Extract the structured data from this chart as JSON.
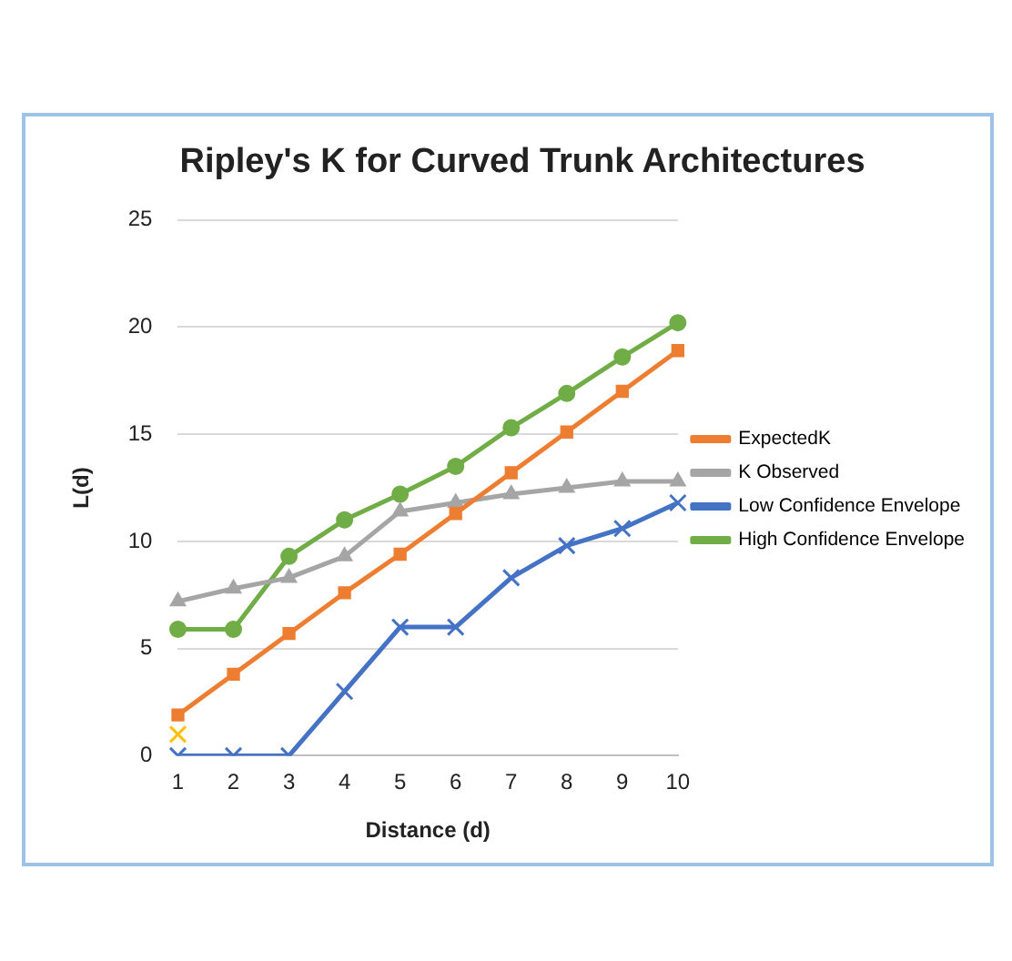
{
  "chart_data": {
    "type": "line",
    "title": "Ripley's K for Curved Trunk Architectures",
    "xlabel": "Distance (d)",
    "ylabel": "L(d)",
    "categories": [
      "1",
      "2",
      "3",
      "4",
      "5",
      "6",
      "7",
      "8",
      "9",
      "10"
    ],
    "series": [
      {
        "name": "ExpectedK",
        "color": "#ed7d31",
        "marker": "square",
        "values": [
          1.9,
          3.8,
          5.7,
          7.6,
          9.4,
          11.3,
          13.2,
          15.1,
          17,
          18.9
        ]
      },
      {
        "name": "K Observed",
        "color": "#a5a5a5",
        "marker": "triangle",
        "values": [
          7.2,
          7.8,
          8.3,
          9.3,
          11.4,
          11.8,
          12.2,
          12.5,
          12.8,
          12.8
        ]
      },
      {
        "name": "Low Confidence Envelope",
        "color": "#4472c4",
        "marker": "cross",
        "values": [
          0,
          0,
          0,
          3,
          6,
          6,
          8.3,
          9.8,
          10.6,
          11.8
        ]
      },
      {
        "name": "High Confidence Envelope",
        "color": "#70ad47",
        "marker": "circle",
        "values": [
          5.9,
          5.9,
          9.3,
          11,
          12.2,
          13.5,
          15.3,
          16.9,
          18.6,
          20.2
        ]
      },
      {
        "type": "scatter",
        "color": "#ffc000",
        "marker": "cross",
        "values": [
          1,
          null,
          null,
          null,
          null,
          null,
          null,
          null,
          null,
          null
        ]
      }
    ],
    "ylim": [
      0,
      25
    ],
    "yticks": [
      0,
      5,
      10,
      15,
      20,
      25
    ],
    "grid": "y",
    "legend": "right"
  }
}
